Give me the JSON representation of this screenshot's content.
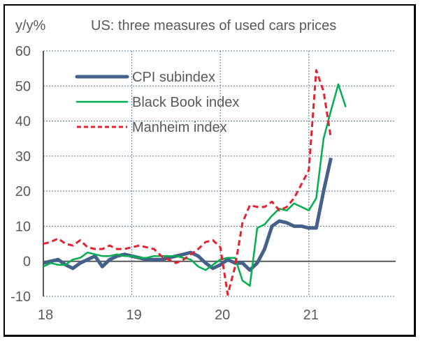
{
  "chart_data": {
    "type": "line",
    "title": "US: three measures of used cars prices",
    "ylabel": "y/y%",
    "xlabel": "",
    "ylim": [
      -10,
      60
    ],
    "yticks": [
      -10,
      0,
      10,
      20,
      30,
      40,
      50,
      60
    ],
    "xlim": [
      0,
      51
    ],
    "xticks": [
      {
        "pos": 0,
        "label": "18"
      },
      {
        "pos": 12,
        "label": "19"
      },
      {
        "pos": 24,
        "label": "20"
      },
      {
        "pos": 36,
        "label": "21"
      }
    ],
    "grid": true,
    "legend": "top-left",
    "x_unit": "months since Jan 2018",
    "series": [
      {
        "name": "CPI subindex",
        "color": "#44618A",
        "style": "solid-thick",
        "start": 0,
        "values": [
          -0.5,
          0,
          0.5,
          -1,
          -2,
          -0.5,
          0.5,
          1.5,
          -1.5,
          0.5,
          1.5,
          2,
          1.5,
          1,
          0.5,
          0.5,
          0.5,
          1,
          1.5,
          2,
          2.5,
          1.5,
          -0.5,
          -2,
          -1,
          0.5,
          -0.5,
          -0.5,
          -2.5,
          -0.5,
          3.5,
          10,
          11.5,
          11,
          10,
          10,
          9.5,
          9.5,
          20,
          29.5
        ]
      },
      {
        "name": "Black Book index",
        "color": "#00B050",
        "style": "solid-thin",
        "start": 0,
        "values": [
          -1.5,
          -0.5,
          -1,
          -1,
          0.5,
          1,
          2.5,
          2,
          1.5,
          1.5,
          2,
          1.5,
          1.5,
          1,
          1,
          1.5,
          1.5,
          1.5,
          1.5,
          1,
          0.5,
          -1.5,
          -2.5,
          -1,
          0.5,
          1,
          1,
          -5.5,
          -7,
          9.5,
          10.5,
          13,
          15,
          14.5,
          16.5,
          15.5,
          14.5,
          18,
          35,
          43,
          50.5,
          44
        ]
      },
      {
        "name": "Manheim index",
        "color": "#E8212E",
        "style": "dashed",
        "start": 0,
        "values": [
          5,
          5.5,
          6.5,
          5,
          4.5,
          6,
          4,
          3.5,
          3.5,
          4.5,
          3.5,
          3.5,
          4,
          4.5,
          4,
          3.5,
          1.5,
          0.5,
          -0.5,
          0.5,
          2,
          3.5,
          5.5,
          6,
          4,
          -9.5,
          -1.5,
          11,
          16,
          15.5,
          15.5,
          17,
          14.5,
          15.5,
          18,
          22,
          26,
          54.5,
          48.5,
          35
        ]
      }
    ]
  }
}
